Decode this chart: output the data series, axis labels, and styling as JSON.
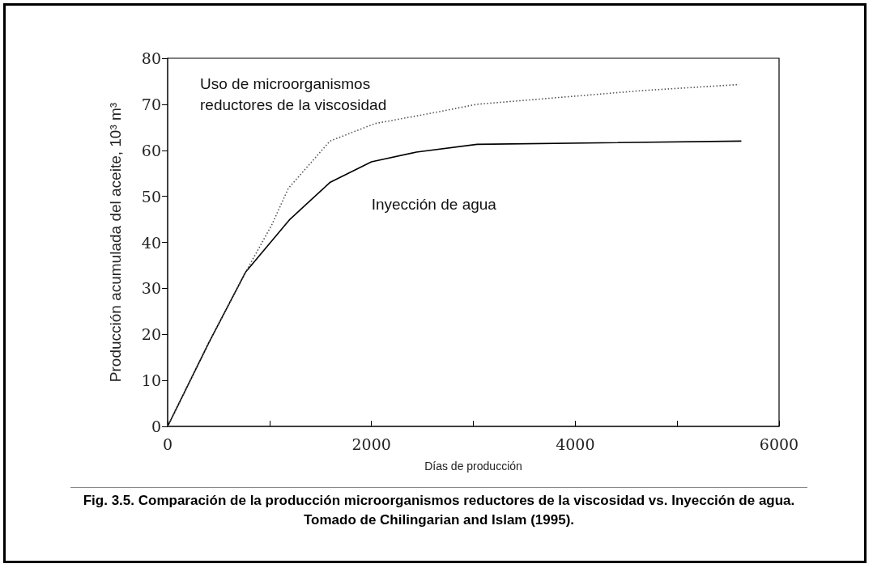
{
  "chart_data": {
    "type": "line",
    "xlabel": "Días de producción",
    "ylabel": "Producción acumulada del aceite, 10³ m³",
    "xlim": [
      0,
      6000
    ],
    "xticks": [
      0,
      {
        "value": 1000,
        "label": null
      },
      2000,
      {
        "value": 3000,
        "label": null
      },
      4000,
      {
        "value": 5000,
        "label": null
      },
      6000
    ],
    "ylim": [
      0,
      80
    ],
    "yticks": [
      0,
      10,
      20,
      30,
      40,
      50,
      60,
      70,
      80
    ],
    "marker": "none",
    "series": [
      {
        "name": "Inyección de agua",
        "color": "#000000",
        "line_style": "solid",
        "x": [
          0,
          400,
          767,
          1200,
          1592,
          2000,
          2440,
          3037,
          5630
        ],
        "values": [
          0,
          18,
          33.6,
          45,
          53,
          57.5,
          59.6,
          61.3,
          62
        ]
      },
      {
        "name": "Uso de microorganismos reductores de la viscosidad",
        "color": "#555555",
        "line_style": "dotted",
        "x": [
          0,
          400,
          767,
          1020,
          1184,
          1592,
          2033,
          2571,
          3037,
          3853,
          4670,
          5608
        ],
        "values": [
          0,
          18,
          33.6,
          43.7,
          51.7,
          62,
          65.8,
          68,
          70,
          71.5,
          73,
          74.3
        ]
      }
    ],
    "annotations": [
      "Fig. 3.5. Comparación de la producción microorganismos reductores de la viscosidad vs. Inyección de agua.",
      "Tomado de Chilingarian and Islam (1995)."
    ]
  }
}
